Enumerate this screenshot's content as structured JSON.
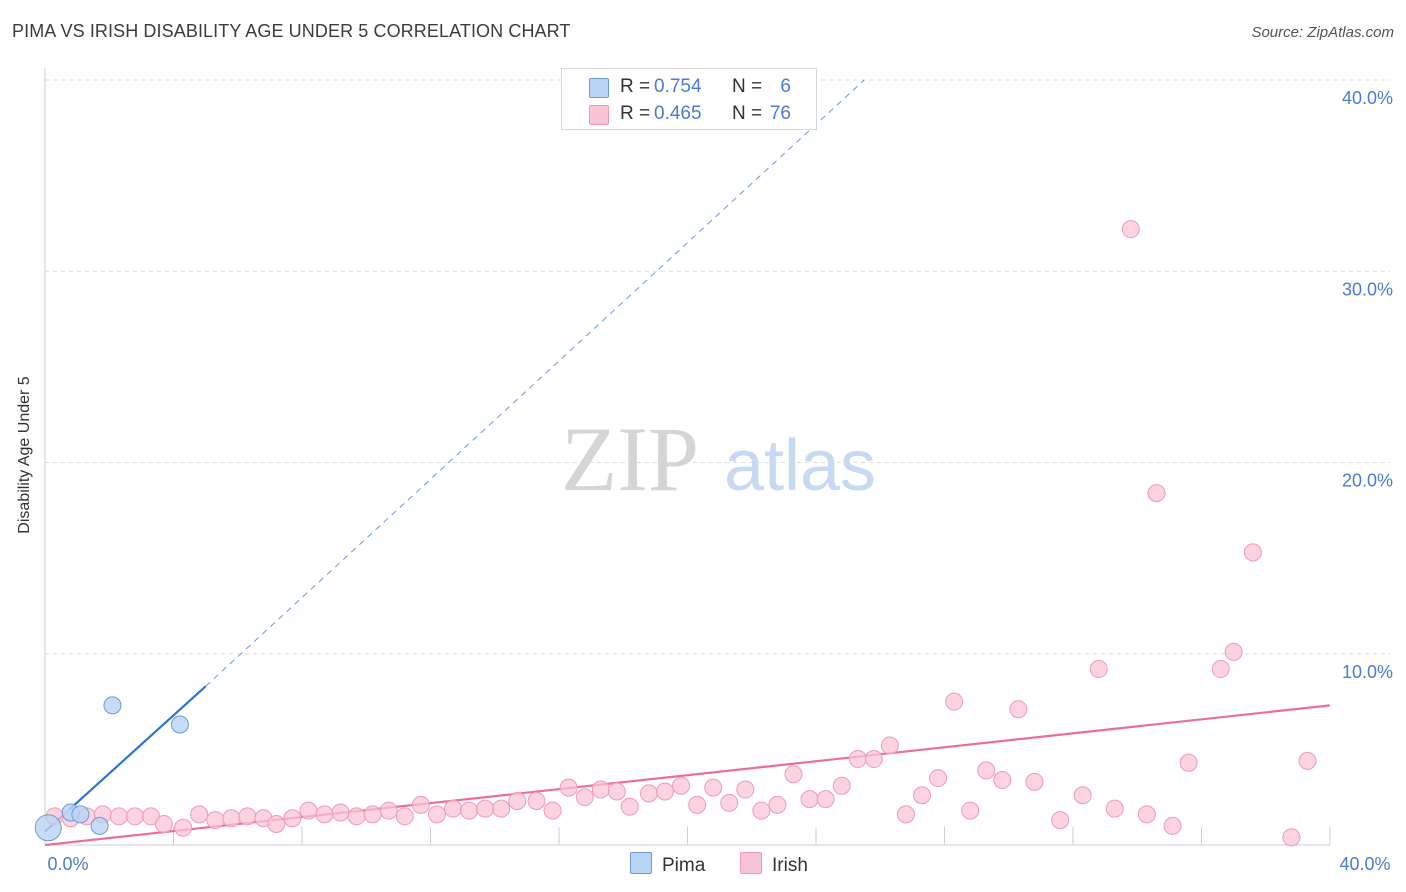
{
  "title": "PIMA VS IRISH DISABILITY AGE UNDER 5 CORRELATION CHART",
  "source": "Source: ZipAtlas.com",
  "watermark": {
    "zip": "ZIP",
    "atlas": "atlas"
  },
  "colors": {
    "pima_fill": "#b9d3f5",
    "pima_stroke": "#6b9bd8",
    "pima_line": "#2f74d0",
    "irish_fill": "#f9c5d5",
    "irish_stroke": "#f19ab7",
    "irish_line": "#e8709a",
    "grid": "#dcdcdc",
    "tick_label": "#4a7dd1"
  },
  "legend": {
    "pima": {
      "r_label": "R =",
      "r_value": "0.754",
      "n_label": "N =",
      "n_value": "6"
    },
    "irish": {
      "r_label": "R =",
      "r_value": "0.465",
      "n_label": "N =",
      "n_value": "76"
    }
  },
  "bottom_legend": {
    "pima": "Pima",
    "irish": "Irish"
  },
  "chart_data": {
    "type": "scatter",
    "title": "PIMA VS IRISH DISABILITY AGE UNDER 5 CORRELATION CHART",
    "xlabel": "",
    "ylabel": "Disability Age Under 5",
    "xlim": [
      0,
      40
    ],
    "ylim": [
      0,
      40
    ],
    "x_tick_labels": [
      "0.0%",
      "40.0%"
    ],
    "y_ticks": [
      10,
      20,
      30,
      40
    ],
    "y_tick_labels": [
      "10.0%",
      "20.0%",
      "30.0%",
      "40.0%"
    ],
    "grid": true,
    "series": [
      {
        "name": "Pima",
        "r": 0.754,
        "n": 6,
        "points": [
          [
            0.1,
            0.9
          ],
          [
            0.8,
            1.7
          ],
          [
            1.1,
            1.6
          ],
          [
            1.7,
            1.0
          ],
          [
            2.1,
            7.3
          ],
          [
            4.2,
            6.3
          ]
        ],
        "trend": {
          "x0": 0,
          "y0": 0.7,
          "x1": 5.0,
          "y1": 8.3,
          "dashed_to_x": 25.5,
          "dashed_to_y": 40.0
        }
      },
      {
        "name": "Irish",
        "r": 0.465,
        "n": 76,
        "points": [
          [
            0.3,
            1.5
          ],
          [
            0.8,
            1.4
          ],
          [
            1.3,
            1.5
          ],
          [
            1.8,
            1.6
          ],
          [
            2.3,
            1.5
          ],
          [
            2.8,
            1.5
          ],
          [
            3.3,
            1.5
          ],
          [
            3.7,
            1.1
          ],
          [
            4.3,
            0.9
          ],
          [
            4.8,
            1.6
          ],
          [
            5.3,
            1.3
          ],
          [
            5.8,
            1.4
          ],
          [
            6.3,
            1.5
          ],
          [
            6.8,
            1.4
          ],
          [
            7.2,
            1.1
          ],
          [
            7.7,
            1.4
          ],
          [
            8.2,
            1.8
          ],
          [
            8.7,
            1.6
          ],
          [
            9.2,
            1.7
          ],
          [
            9.7,
            1.5
          ],
          [
            10.2,
            1.6
          ],
          [
            10.7,
            1.8
          ],
          [
            11.2,
            1.5
          ],
          [
            11.7,
            2.1
          ],
          [
            12.2,
            1.6
          ],
          [
            12.7,
            1.9
          ],
          [
            13.2,
            1.8
          ],
          [
            13.7,
            1.9
          ],
          [
            14.2,
            1.9
          ],
          [
            14.7,
            2.3
          ],
          [
            15.3,
            2.3
          ],
          [
            15.8,
            1.8
          ],
          [
            16.3,
            3.0
          ],
          [
            16.8,
            2.5
          ],
          [
            17.3,
            2.9
          ],
          [
            17.8,
            2.8
          ],
          [
            18.2,
            2.0
          ],
          [
            18.8,
            2.7
          ],
          [
            19.3,
            2.8
          ],
          [
            19.8,
            3.1
          ],
          [
            20.3,
            2.1
          ],
          [
            20.8,
            3.0
          ],
          [
            21.3,
            2.2
          ],
          [
            21.8,
            2.9
          ],
          [
            22.3,
            1.8
          ],
          [
            22.8,
            2.1
          ],
          [
            23.3,
            3.7
          ],
          [
            23.8,
            2.4
          ],
          [
            24.3,
            2.4
          ],
          [
            24.8,
            3.1
          ],
          [
            25.3,
            4.5
          ],
          [
            25.8,
            4.5
          ],
          [
            26.3,
            5.2
          ],
          [
            26.8,
            1.6
          ],
          [
            27.3,
            2.6
          ],
          [
            27.8,
            3.5
          ],
          [
            28.3,
            7.5
          ],
          [
            28.8,
            1.8
          ],
          [
            29.3,
            3.9
          ],
          [
            29.8,
            3.4
          ],
          [
            30.3,
            7.1
          ],
          [
            30.8,
            3.3
          ],
          [
            31.6,
            1.3
          ],
          [
            32.3,
            2.6
          ],
          [
            32.8,
            9.2
          ],
          [
            33.3,
            1.9
          ],
          [
            33.8,
            32.2
          ],
          [
            34.3,
            1.6
          ],
          [
            34.6,
            18.4
          ],
          [
            35.1,
            1.0
          ],
          [
            35.6,
            4.3
          ],
          [
            36.6,
            9.2
          ],
          [
            37.0,
            10.1
          ],
          [
            37.6,
            15.3
          ],
          [
            38.8,
            0.4
          ],
          [
            39.3,
            4.4
          ]
        ],
        "trend": {
          "x0": 0,
          "y0": 0.0,
          "x1": 40,
          "y1": 7.3
        }
      }
    ]
  }
}
